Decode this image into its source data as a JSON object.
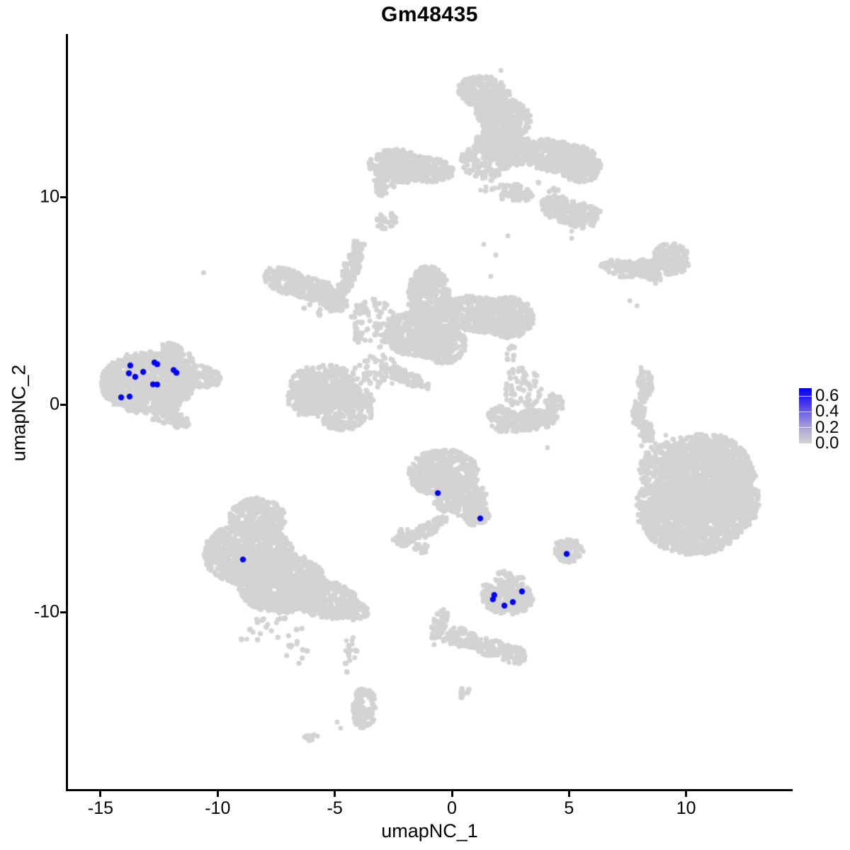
{
  "title": "Gm48435",
  "axes": {
    "x": {
      "label": "umapNC_1",
      "ticks": [
        -15,
        -10,
        -5,
        0,
        5,
        10
      ]
    },
    "y": {
      "label": "umapNC_2",
      "ticks": [
        10,
        0,
        -10
      ]
    }
  },
  "legend": {
    "labels": [
      "0.6",
      "0.4",
      "0.2",
      "0.0"
    ],
    "label_values": [
      0.6,
      0.4,
      0.2,
      0.0
    ],
    "scale_max": 0.7,
    "low_color": "#D3D3D3",
    "high_color": "#0000FF",
    "gradient_stops_top_to_bottom": [
      "#0000FF",
      "#3E30EE",
      "#7B70E1",
      "#AEAAD8",
      "#D3D3D3"
    ]
  },
  "chart_data": {
    "type": "scatter",
    "title": "Gm48435",
    "xlabel": "umapNC_1",
    "ylabel": "umapNC_2",
    "xlim": [
      -16.4,
      14.5
    ],
    "ylim": [
      -18.6,
      17.8
    ],
    "grid": false,
    "point_color_low": "#D3D3D3",
    "point_color_high": "#0000FF",
    "clusters": [
      {
        "name": "top-mushroom",
        "blobs": [
          [
            1.4,
            15.0,
            1.15,
            0.8,
            -20,
            1
          ],
          [
            2.2,
            13.9,
            1.25,
            0.9,
            -25,
            1
          ],
          [
            2.2,
            12.4,
            1.3,
            0.9,
            -15,
            1
          ],
          [
            1.4,
            11.7,
            1.1,
            0.8,
            0,
            0.55
          ],
          [
            4.2,
            12.0,
            1.15,
            0.8,
            -10,
            1
          ],
          [
            5.4,
            11.6,
            1.0,
            0.85,
            -30,
            0.95
          ],
          [
            -2.3,
            11.5,
            1.25,
            0.8,
            -8,
            1
          ],
          [
            -1.0,
            11.3,
            1.1,
            0.6,
            -8,
            0.9
          ],
          [
            -2.9,
            10.65,
            0.5,
            0.3,
            0,
            0.8
          ],
          [
            2.8,
            10.2,
            0.65,
            0.4,
            -10,
            0.9
          ],
          [
            4.7,
            9.4,
            0.9,
            0.6,
            -20,
            0.9
          ],
          [
            5.6,
            9.1,
            0.8,
            0.6,
            0,
            0.9
          ],
          [
            1.8,
            10.4,
            0.65,
            0.6,
            0,
            0.12
          ],
          [
            4.0,
            10.3,
            0.55,
            0.55,
            0,
            0.12
          ],
          [
            5.2,
            8.5,
            0.5,
            0.45,
            0,
            0.1
          ],
          [
            -2.95,
            10.35,
            0.3,
            0.3,
            0,
            0.7
          ],
          [
            -2.8,
            8.85,
            0.45,
            0.4,
            20,
            0.8
          ]
        ]
      },
      {
        "name": "wing-island",
        "blobs": [
          [
            7.25,
            6.55,
            0.95,
            0.4,
            -5,
            0.9
          ],
          [
            8.45,
            6.6,
            0.85,
            0.45,
            5,
            0.9
          ],
          [
            9.35,
            7.0,
            0.8,
            0.75,
            0,
            0.95
          ],
          [
            8.65,
            6.1,
            0.35,
            0.25,
            -30,
            0.8
          ]
        ]
      },
      {
        "name": "central-complex",
        "blobs": [
          [
            -7.1,
            5.95,
            0.95,
            0.6,
            -25,
            0.95
          ],
          [
            -6.0,
            5.55,
            0.95,
            0.55,
            -15,
            0.95
          ],
          [
            -5.1,
            5.05,
            0.75,
            0.5,
            -30,
            0.9
          ],
          [
            -4.35,
            6.4,
            0.35,
            1.3,
            -18,
            0.85
          ],
          [
            -4.0,
            7.6,
            0.3,
            0.4,
            0,
            0.6
          ],
          [
            -5.6,
            5.2,
            1.0,
            0.9,
            0,
            0.12
          ],
          [
            -3.4,
            3.9,
            1.0,
            1.2,
            0,
            0.25
          ],
          [
            -1.55,
            3.4,
            1.35,
            1.05,
            0,
            0.95
          ],
          [
            -0.5,
            2.9,
            1.1,
            0.95,
            0,
            0.9
          ],
          [
            -1.0,
            5.2,
            0.9,
            1.5,
            0,
            0.95
          ],
          [
            1.1,
            4.35,
            1.6,
            0.85,
            -8,
            0.9
          ],
          [
            2.45,
            4.2,
            1.05,
            1.0,
            0,
            0.95
          ],
          [
            -5.5,
            0.9,
            1.4,
            1.05,
            0,
            0.8
          ],
          [
            -4.6,
            -0.1,
            1.3,
            1.15,
            0,
            0.8
          ],
          [
            -6.3,
            0.3,
            0.75,
            0.85,
            0,
            0.6
          ],
          [
            -2.0,
            1.35,
            1.15,
            0.3,
            -28,
            0.85
          ],
          [
            -3.3,
            1.6,
            0.95,
            0.95,
            0,
            0.2
          ],
          [
            2.5,
            2.5,
            0.2,
            0.5,
            0,
            0.25
          ]
        ]
      },
      {
        "name": "center-right-paw",
        "blobs": [
          [
            3.0,
            0.8,
            0.85,
            1.0,
            0,
            0.3
          ],
          [
            3.1,
            -0.8,
            1.45,
            0.52,
            8,
            0.9
          ],
          [
            4.35,
            0.0,
            0.4,
            0.5,
            0,
            0.7
          ],
          [
            2.05,
            -0.5,
            0.5,
            0.42,
            0,
            0.8
          ]
        ]
      },
      {
        "name": "left-cluster",
        "blobs": [
          [
            -13.0,
            1.05,
            2.0,
            1.5,
            0,
            1
          ],
          [
            -11.1,
            1.4,
            1.3,
            0.55,
            -10,
            0.95
          ],
          [
            -11.7,
            2.45,
            0.8,
            0.32,
            -35,
            0.8
          ],
          [
            -12.2,
            -0.5,
            0.7,
            0.4,
            0,
            0.85
          ],
          [
            -11.6,
            -0.85,
            0.4,
            0.3,
            0,
            0.7
          ]
        ]
      },
      {
        "name": "right-thin-strip",
        "blobs": [
          [
            8.25,
            1.1,
            0.3,
            0.75,
            10,
            0.85
          ],
          [
            8.0,
            -0.2,
            0.28,
            0.8,
            -12,
            0.85
          ],
          [
            8.3,
            -1.3,
            0.3,
            0.55,
            15,
            0.8
          ]
        ]
      },
      {
        "name": "right-large-round",
        "blobs": [
          [
            10.8,
            -3.6,
            2.1,
            2.2,
            0,
            1
          ],
          [
            10.3,
            -5.5,
            2.2,
            1.75,
            0,
            1
          ],
          [
            12.3,
            -4.4,
            0.85,
            1.6,
            0,
            0.9
          ],
          [
            9.0,
            -3.1,
            1.0,
            1.2,
            0,
            0.5
          ],
          [
            8.6,
            -5.0,
            0.8,
            1.15,
            0,
            0.55
          ],
          [
            9.4,
            -2.2,
            0.9,
            0.8,
            0,
            0.12
          ]
        ]
      },
      {
        "name": "bottom-left-large",
        "blobs": [
          [
            -8.3,
            -5.5,
            1.2,
            1.0,
            0,
            0.9
          ],
          [
            -8.7,
            -7.2,
            1.9,
            1.5,
            0,
            1
          ],
          [
            -7.3,
            -8.6,
            1.9,
            1.45,
            0,
            1
          ],
          [
            -5.4,
            -9.4,
            1.5,
            0.9,
            -12,
            0.9
          ],
          [
            -4.25,
            -9.9,
            0.7,
            0.5,
            -15,
            0.8
          ],
          [
            -7.6,
            -11.0,
            1.5,
            0.85,
            0,
            0.07
          ],
          [
            -6.6,
            -12.0,
            0.5,
            0.7,
            0,
            0.08
          ]
        ]
      },
      {
        "name": "center-teardrop",
        "blobs": [
          [
            -0.35,
            -3.3,
            1.5,
            1.15,
            0,
            0.95
          ],
          [
            0.35,
            -4.5,
            1.15,
            0.85,
            0,
            0.9
          ],
          [
            1.05,
            -5.35,
            0.6,
            0.5,
            0,
            0.85
          ],
          [
            -0.9,
            -5.9,
            0.85,
            0.32,
            35,
            0.7
          ],
          [
            -2.05,
            -6.4,
            0.5,
            0.4,
            0,
            0.75
          ],
          [
            -1.3,
            -6.9,
            0.3,
            0.25,
            0,
            0.5
          ]
        ]
      },
      {
        "name": "small-triangle-island",
        "blobs": [
          [
            5.0,
            -7.05,
            0.6,
            0.55,
            0,
            0.85
          ],
          [
            4.7,
            -6.75,
            0.3,
            0.28,
            0,
            0.7
          ]
        ]
      },
      {
        "name": "bottom-small-cluster",
        "blobs": [
          [
            2.4,
            -9.3,
            1.1,
            0.8,
            0,
            0.95
          ],
          [
            2.2,
            -8.35,
            0.35,
            0.35,
            0,
            0.7
          ],
          [
            2.8,
            -8.5,
            0.3,
            0.26,
            0,
            0.6
          ],
          [
            1.5,
            -8.95,
            0.32,
            0.3,
            0,
            0.7
          ]
        ]
      },
      {
        "name": "bottom-chain",
        "blobs": [
          [
            -0.55,
            -10.6,
            0.3,
            0.8,
            -18,
            0.8
          ],
          [
            0.3,
            -11.2,
            0.75,
            0.45,
            0,
            0.8
          ],
          [
            1.6,
            -11.7,
            1.05,
            0.4,
            -12,
            0.8
          ],
          [
            2.6,
            -12.1,
            0.55,
            0.45,
            0,
            0.8
          ],
          [
            0.55,
            -13.9,
            0.22,
            0.3,
            0,
            0.5
          ]
        ]
      },
      {
        "name": "bottom-drip",
        "blobs": [
          [
            -4.3,
            -12.1,
            0.28,
            1.05,
            0,
            0.18
          ],
          [
            -3.75,
            -14.6,
            0.5,
            1.05,
            0,
            0.75
          ],
          [
            -6.0,
            -16.0,
            0.38,
            0.18,
            30,
            0.6
          ]
        ]
      }
    ],
    "singletons": [
      [
        2.09,
        16.1
      ],
      [
        1.36,
        7.71
      ],
      [
        1.87,
        7.2
      ],
      [
        1.66,
        6.18
      ],
      [
        2.39,
        8.12
      ],
      [
        -10.6,
        6.35
      ],
      [
        7.6,
        5.0
      ],
      [
        7.9,
        4.75
      ],
      [
        5.11,
        8.0
      ],
      [
        4.08,
        -2.08
      ],
      [
        2.87,
        1.74
      ],
      [
        8.1,
        -2.0
      ],
      [
        -0.76,
        -11.57
      ],
      [
        -4.9,
        -15.3
      ],
      [
        -4.75,
        -15.6
      ]
    ],
    "highlighted_cells": [
      [
        -13.73,
        1.88
      ],
      [
        -12.7,
        2.02
      ],
      [
        -12.58,
        1.94
      ],
      [
        -13.79,
        1.5
      ],
      [
        -13.52,
        1.33
      ],
      [
        -13.18,
        1.57
      ],
      [
        -11.88,
        1.66
      ],
      [
        -11.76,
        1.53
      ],
      [
        -12.76,
        0.97
      ],
      [
        -12.58,
        0.96
      ],
      [
        -14.12,
        0.34
      ],
      [
        -13.76,
        0.38
      ],
      [
        -8.92,
        -7.47
      ],
      [
        -0.6,
        -4.27
      ],
      [
        1.21,
        -5.49
      ],
      [
        4.9,
        -7.2
      ],
      [
        1.81,
        -9.18
      ],
      [
        1.75,
        -9.39
      ],
      [
        2.24,
        -9.69
      ],
      [
        2.6,
        -9.52
      ],
      [
        2.99,
        -9.01
      ]
    ]
  }
}
